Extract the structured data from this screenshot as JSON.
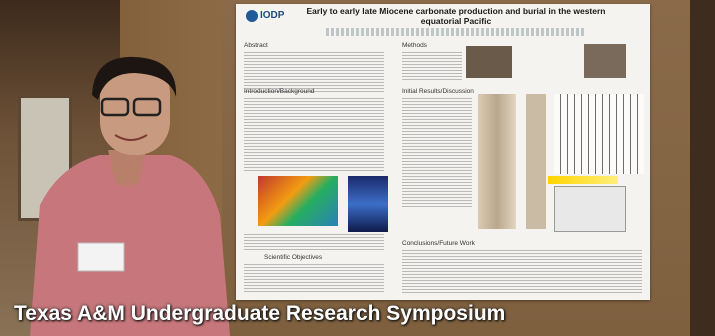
{
  "caption": "Texas A&M Undergraduate Research Symposium",
  "poster": {
    "title": "Early to early late Miocene carbonate production and burial in the western equatorial Pacific",
    "logo": "IODP",
    "sections": [
      "Abstract",
      "Methods",
      "Introduction/Background",
      "Initial Results/Discussion",
      "Scientific Objectives",
      "Conclusions/Future Work"
    ]
  }
}
